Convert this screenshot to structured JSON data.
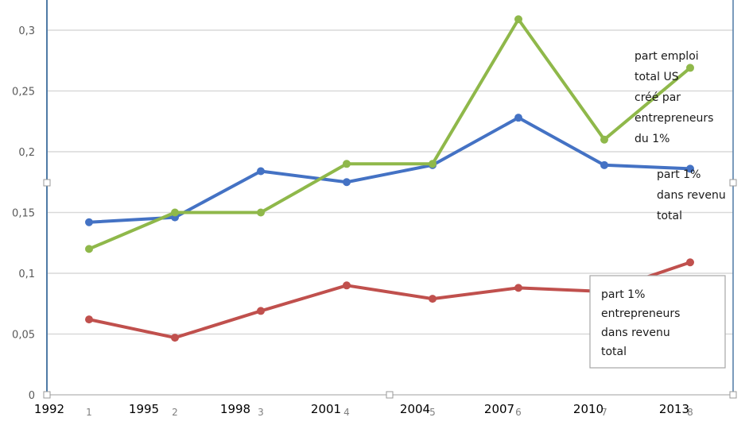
{
  "chart_data": {
    "type": "line",
    "title": "",
    "xlabel": "",
    "ylabel": "",
    "categories": [
      "1",
      "2",
      "3",
      "4",
      "5",
      "6",
      "7",
      "8"
    ],
    "overlay_year_labels": [
      "1992",
      "1995",
      "1998",
      "2001",
      "2004",
      "2007",
      "2010",
      "2013"
    ],
    "y_ticks": [
      "0",
      "0,05",
      "0,1",
      "0,15",
      "0,2",
      "0,25",
      "0,3"
    ],
    "ylim": [
      0,
      0.32
    ],
    "grid": true,
    "legend": "none (inline text labels)",
    "series": [
      {
        "name": "part 1% dans revenu total",
        "color": "#4472c4",
        "values": [
          0.142,
          0.146,
          0.184,
          0.175,
          0.189,
          0.228,
          0.189,
          0.186
        ]
      },
      {
        "name": "part emploi total US créé par entrepreneurs du 1%",
        "color": "#8fb84a",
        "values": [
          0.12,
          0.15,
          0.15,
          0.19,
          0.19,
          0.309,
          0.21,
          0.269
        ]
      },
      {
        "name": "part 1% entrepreneurs dans revenu total",
        "color": "#c0504d",
        "values": [
          0.062,
          0.047,
          0.069,
          0.09,
          0.079,
          0.088,
          0.085,
          0.109
        ]
      }
    ],
    "annotations": {
      "green_label": [
        "part emploi",
        "total US",
        "créé par",
        "entrepreneurs",
        "du 1%"
      ],
      "blue_label": [
        "part 1%",
        "dans revenu",
        "total"
      ],
      "red_label_box": [
        "part 1%",
        "entrepreneurs",
        "dans revenu",
        "total"
      ]
    }
  }
}
